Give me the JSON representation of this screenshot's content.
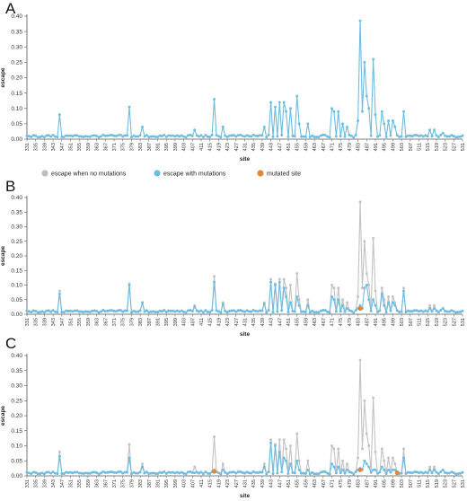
{
  "figure": {
    "colors": {
      "escape": "#6bbde3",
      "gray": "#c2c2c2",
      "mutated": "#e0883a",
      "axis": "#555555"
    },
    "legend": [
      {
        "label": "escape when no mutations",
        "color": "#bdbdbd"
      },
      {
        "label": "escape with mutations",
        "color": "#6bbde3"
      },
      {
        "label": "mutated site",
        "color": "#e0883a"
      }
    ]
  },
  "chart_data": [
    {
      "panel": "A",
      "type": "line",
      "xlabel": "site",
      "ylabel": "escape",
      "ylim": [
        0,
        0.4
      ],
      "yticks": [
        "0.00",
        "0.05",
        "0.10",
        "0.15",
        "0.20",
        "0.25",
        "0.30",
        "0.35",
        "0.40"
      ],
      "x_range": [
        331,
        531
      ],
      "xtick_labels": [
        "331",
        "335",
        "339",
        "343",
        "347",
        "351",
        "355",
        "359",
        "363",
        "367",
        "371",
        "375",
        "379",
        "383",
        "387",
        "391",
        "395",
        "399",
        "403",
        "407",
        "411",
        "415",
        "419",
        "423",
        "427",
        "431",
        "435",
        "439",
        "443",
        "447",
        "451",
        "455",
        "459",
        "463",
        "467",
        "471",
        "475",
        "479",
        "483",
        "487",
        "491",
        "495",
        "499",
        "503",
        "507",
        "511",
        "515",
        "519",
        "523",
        "527",
        "531"
      ],
      "baseline": 0.01,
      "series": [
        {
          "role": "escape",
          "color": "#6bbde3",
          "points": [
            [
              346,
              0.08
            ],
            [
              378,
              0.105
            ],
            [
              384,
              0.04
            ],
            [
              417,
              0.13
            ],
            [
              421,
              0.04
            ],
            [
              408,
              0.03
            ],
            [
              440,
              0.04
            ],
            [
              443,
              0.12
            ],
            [
              445,
              0.105
            ],
            [
              447,
              0.12
            ],
            [
              449,
              0.12
            ],
            [
              450,
              0.09
            ],
            [
              452,
              0.1
            ],
            [
              455,
              0.14
            ],
            [
              456,
              0.05
            ],
            [
              460,
              0.05
            ],
            [
              471,
              0.1
            ],
            [
              472,
              0.09
            ],
            [
              474,
              0.09
            ],
            [
              476,
              0.05
            ],
            [
              478,
              0.04
            ],
            [
              483,
              0.06
            ],
            [
              484,
              0.385
            ],
            [
              485,
              0.09
            ],
            [
              486,
              0.25
            ],
            [
              487,
              0.14
            ],
            [
              488,
              0.1
            ],
            [
              490,
              0.26
            ],
            [
              491,
              0.08
            ],
            [
              494,
              0.09
            ],
            [
              495,
              0.05
            ],
            [
              497,
              0.06
            ],
            [
              499,
              0.06
            ],
            [
              500,
              0.04
            ],
            [
              504,
              0.09
            ],
            [
              516,
              0.03
            ],
            [
              518,
              0.03
            ],
            [
              522,
              0.02
            ]
          ]
        }
      ]
    },
    {
      "panel": "B",
      "type": "line",
      "xlabel": "site",
      "ylabel": "escape",
      "ylim": [
        0,
        0.4
      ],
      "yticks": [
        "0.00",
        "0.05",
        "0.10",
        "0.15",
        "0.20",
        "0.25",
        "0.30",
        "0.35",
        "0.40"
      ],
      "x_range": [
        331,
        531
      ],
      "xtick_labels": [
        "331",
        "335",
        "339",
        "343",
        "347",
        "351",
        "355",
        "359",
        "363",
        "367",
        "371",
        "375",
        "379",
        "383",
        "387",
        "391",
        "395",
        "399",
        "403",
        "407",
        "411",
        "415",
        "419",
        "423",
        "427",
        "431",
        "435",
        "439",
        "443",
        "447",
        "451",
        "455",
        "459",
        "463",
        "467",
        "471",
        "475",
        "479",
        "483",
        "487",
        "491",
        "495",
        "499",
        "503",
        "507",
        "511",
        "515",
        "519",
        "523",
        "527",
        "531"
      ],
      "baseline": 0.01,
      "series": [
        {
          "role": "gray",
          "name": "escape when no mutations",
          "color": "#c2c2c2",
          "points": [
            [
              346,
              0.08
            ],
            [
              378,
              0.105
            ],
            [
              384,
              0.04
            ],
            [
              417,
              0.13
            ],
            [
              421,
              0.04
            ],
            [
              408,
              0.03
            ],
            [
              440,
              0.04
            ],
            [
              443,
              0.12
            ],
            [
              445,
              0.105
            ],
            [
              447,
              0.12
            ],
            [
              449,
              0.12
            ],
            [
              450,
              0.09
            ],
            [
              452,
              0.1
            ],
            [
              455,
              0.14
            ],
            [
              456,
              0.05
            ],
            [
              460,
              0.05
            ],
            [
              471,
              0.1
            ],
            [
              472,
              0.09
            ],
            [
              474,
              0.09
            ],
            [
              476,
              0.05
            ],
            [
              478,
              0.04
            ],
            [
              483,
              0.06
            ],
            [
              484,
              0.385
            ],
            [
              485,
              0.09
            ],
            [
              486,
              0.25
            ],
            [
              487,
              0.14
            ],
            [
              488,
              0.1
            ],
            [
              490,
              0.26
            ],
            [
              491,
              0.08
            ],
            [
              494,
              0.09
            ],
            [
              495,
              0.05
            ],
            [
              497,
              0.06
            ],
            [
              499,
              0.06
            ],
            [
              500,
              0.04
            ],
            [
              504,
              0.09
            ],
            [
              516,
              0.03
            ],
            [
              518,
              0.03
            ],
            [
              522,
              0.02
            ]
          ]
        },
        {
          "role": "escape",
          "name": "escape with mutations",
          "color": "#6bbde3",
          "points": [
            [
              346,
              0.07
            ],
            [
              378,
              0.1
            ],
            [
              384,
              0.04
            ],
            [
              417,
              0.11
            ],
            [
              421,
              0.035
            ],
            [
              408,
              0.025
            ],
            [
              440,
              0.035
            ],
            [
              443,
              0.11
            ],
            [
              445,
              0.1
            ],
            [
              447,
              0.11
            ],
            [
              449,
              0.09
            ],
            [
              450,
              0.06
            ],
            [
              452,
              0.04
            ],
            [
              455,
              0.06
            ],
            [
              456,
              0.03
            ],
            [
              460,
              0.03
            ],
            [
              471,
              0.06
            ],
            [
              472,
              0.05
            ],
            [
              474,
              0.05
            ],
            [
              476,
              0.03
            ],
            [
              478,
              0.02
            ],
            [
              483,
              0.02
            ],
            [
              484,
              0.03
            ],
            [
              485,
              0.02
            ],
            [
              486,
              0.09
            ],
            [
              487,
              0.1
            ],
            [
              488,
              0.05
            ],
            [
              490,
              0.05
            ],
            [
              491,
              0.03
            ],
            [
              494,
              0.07
            ],
            [
              495,
              0.03
            ],
            [
              497,
              0.04
            ],
            [
              499,
              0.04
            ],
            [
              500,
              0.03
            ],
            [
              504,
              0.08
            ],
            [
              516,
              0.02
            ],
            [
              518,
              0.02
            ],
            [
              522,
              0.02
            ]
          ]
        },
        {
          "role": "mutated",
          "name": "mutated site",
          "color": "#e0883a",
          "points": [
            [
              484,
              0.02
            ]
          ]
        }
      ]
    },
    {
      "panel": "C",
      "type": "line",
      "xlabel": "site",
      "ylabel": "escape",
      "ylim": [
        0,
        0.4
      ],
      "yticks": [
        "0.00",
        "0.05",
        "0.10",
        "0.15",
        "0.20",
        "0.25",
        "0.30",
        "0.35",
        "0.40"
      ],
      "x_range": [
        331,
        531
      ],
      "xtick_labels": [
        "331",
        "335",
        "339",
        "343",
        "347",
        "351",
        "355",
        "359",
        "363",
        "367",
        "371",
        "375",
        "379",
        "383",
        "387",
        "391",
        "395",
        "399",
        "403",
        "407",
        "411",
        "415",
        "419",
        "423",
        "427",
        "431",
        "435",
        "439",
        "443",
        "447",
        "451",
        "455",
        "459",
        "463",
        "467",
        "471",
        "475",
        "479",
        "483",
        "487",
        "491",
        "495",
        "499",
        "503",
        "507",
        "511",
        "515",
        "519",
        "523",
        "527",
        "531"
      ],
      "baseline": 0.01,
      "series": [
        {
          "role": "gray",
          "color": "#c2c2c2",
          "points": [
            [
              346,
              0.08
            ],
            [
              378,
              0.105
            ],
            [
              384,
              0.04
            ],
            [
              417,
              0.13
            ],
            [
              421,
              0.04
            ],
            [
              408,
              0.03
            ],
            [
              440,
              0.04
            ],
            [
              443,
              0.12
            ],
            [
              445,
              0.105
            ],
            [
              447,
              0.12
            ],
            [
              449,
              0.12
            ],
            [
              450,
              0.09
            ],
            [
              452,
              0.1
            ],
            [
              455,
              0.14
            ],
            [
              456,
              0.05
            ],
            [
              460,
              0.05
            ],
            [
              471,
              0.1
            ],
            [
              472,
              0.09
            ],
            [
              474,
              0.09
            ],
            [
              476,
              0.05
            ],
            [
              478,
              0.04
            ],
            [
              483,
              0.06
            ],
            [
              484,
              0.385
            ],
            [
              485,
              0.09
            ],
            [
              486,
              0.25
            ],
            [
              487,
              0.14
            ],
            [
              488,
              0.1
            ],
            [
              490,
              0.26
            ],
            [
              491,
              0.08
            ],
            [
              494,
              0.09
            ],
            [
              495,
              0.05
            ],
            [
              497,
              0.06
            ],
            [
              499,
              0.06
            ],
            [
              500,
              0.04
            ],
            [
              504,
              0.09
            ],
            [
              516,
              0.03
            ],
            [
              518,
              0.03
            ],
            [
              522,
              0.02
            ]
          ]
        },
        {
          "role": "escape",
          "color": "#6bbde3",
          "points": [
            [
              346,
              0.065
            ],
            [
              378,
              0.06
            ],
            [
              384,
              0.03
            ],
            [
              417,
              0.02
            ],
            [
              421,
              0.02
            ],
            [
              408,
              0.01
            ],
            [
              440,
              0.03
            ],
            [
              443,
              0.11
            ],
            [
              445,
              0.1
            ],
            [
              447,
              0.08
            ],
            [
              449,
              0.06
            ],
            [
              450,
              0.05
            ],
            [
              452,
              0.04
            ],
            [
              455,
              0.05
            ],
            [
              456,
              0.02
            ],
            [
              460,
              0.02
            ],
            [
              471,
              0.04
            ],
            [
              472,
              0.03
            ],
            [
              474,
              0.03
            ],
            [
              476,
              0.02
            ],
            [
              478,
              0.02
            ],
            [
              483,
              0.02
            ],
            [
              484,
              0.025
            ],
            [
              485,
              0.02
            ],
            [
              486,
              0.05
            ],
            [
              487,
              0.04
            ],
            [
              488,
              0.03
            ],
            [
              490,
              0.02
            ],
            [
              491,
              0.02
            ],
            [
              494,
              0.03
            ],
            [
              495,
              0.02
            ],
            [
              497,
              0.02
            ],
            [
              499,
              0.02
            ],
            [
              500,
              0.02
            ],
            [
              504,
              0.06
            ],
            [
              516,
              0.02
            ],
            [
              518,
              0.02
            ],
            [
              522,
              0.02
            ]
          ]
        },
        {
          "role": "mutated",
          "color": "#e0883a",
          "points": [
            [
              417,
              0.015
            ],
            [
              484,
              0.02
            ],
            [
              501,
              0.01
            ]
          ]
        }
      ]
    }
  ]
}
